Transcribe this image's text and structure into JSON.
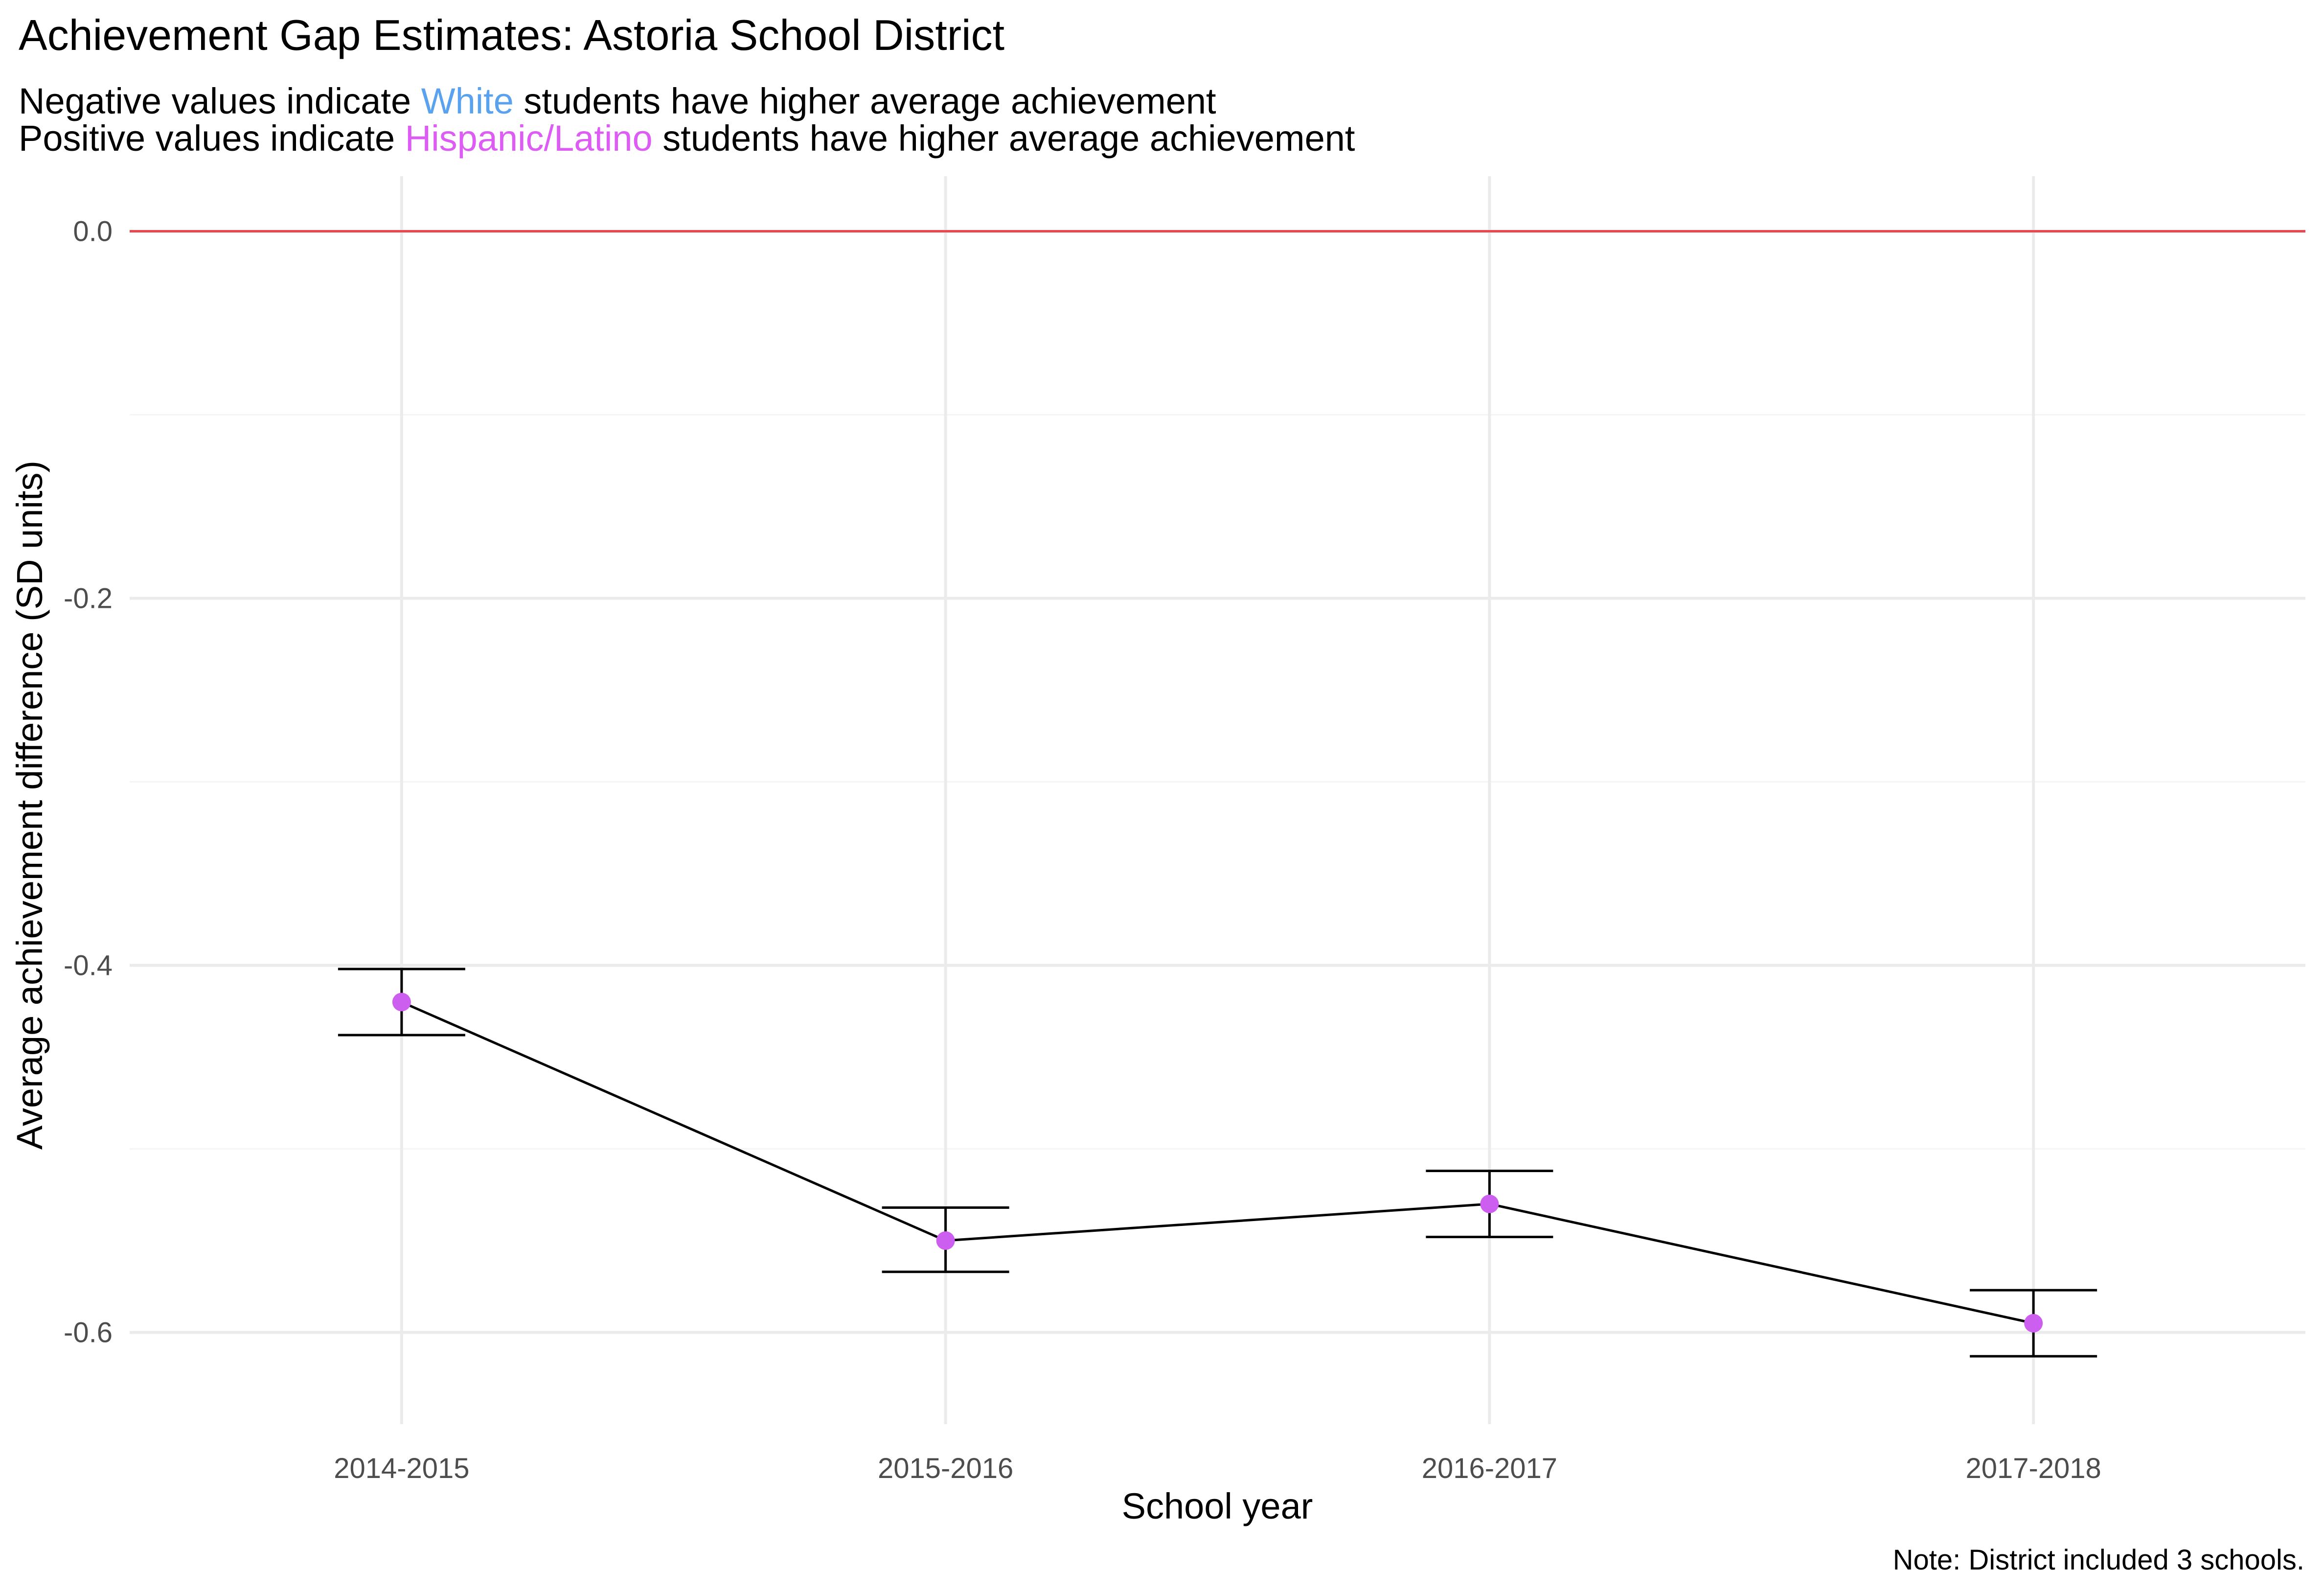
{
  "chart_data": {
    "type": "line",
    "title": "Achievement Gap Estimates: Astoria School District",
    "subtitle": {
      "line1": {
        "before": "Negative values indicate ",
        "highlight": "White",
        "after": " students have higher average achievement"
      },
      "line2": {
        "before": "Positive values indicate ",
        "highlight": "Hispanic/Latino",
        "after": " students have higher average achievement"
      }
    },
    "xlabel": "School year",
    "ylabel": "Average achievement difference (SD units)",
    "caption": "Note: District included 3 schools.",
    "categories": [
      "2014-2015",
      "2015-2016",
      "2016-2017",
      "2017-2018"
    ],
    "series": [
      {
        "values": [
          -0.42,
          -0.55,
          -0.53,
          -0.595
        ],
        "ci_lower": [
          -0.438,
          -0.567,
          -0.548,
          -0.613
        ],
        "ci_upper": [
          -0.402,
          -0.532,
          -0.512,
          -0.577
        ]
      }
    ],
    "reference_line": {
      "y": 0.0
    },
    "ylim": [
      -0.65,
      0.03
    ],
    "yticks": [
      {
        "value": 0.0,
        "label": "0.0"
      },
      {
        "value": -0.2,
        "label": "-0.2"
      },
      {
        "value": -0.4,
        "label": "-0.4"
      },
      {
        "value": -0.6,
        "label": "-0.6"
      }
    ],
    "minor_yticks": [
      -0.1,
      -0.3,
      -0.5
    ],
    "grid": true,
    "colors": {
      "white_highlight": "#5aa2ee",
      "hispanic_highlight": "#dc5cf4",
      "point": "#cc5ef0",
      "line": "#000000",
      "reference_line": "#e8484f",
      "grid_major": "#ebebeb",
      "grid_minor": "#f5f5f5",
      "tick_text": "#4d4d4d",
      "text": "#000000"
    }
  }
}
